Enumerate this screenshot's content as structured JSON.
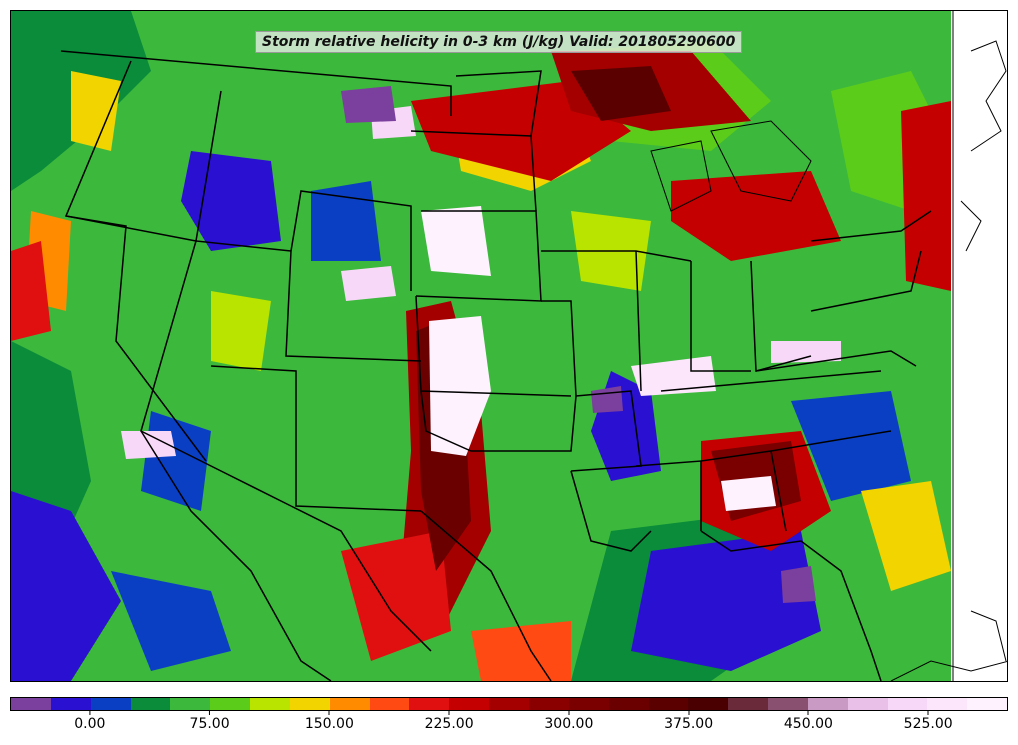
{
  "title": "Storm relative helicity in 0-3 km (J/kg) Valid: 201805290600",
  "colorbar": {
    "colors": [
      "#7b3f9e",
      "#2a10d0",
      "#0a3fc4",
      "#0a8c3a",
      "#3cb83c",
      "#5ccc1a",
      "#b8e400",
      "#f2d400",
      "#ff8c00",
      "#ff4a14",
      "#e01010",
      "#c40000",
      "#a40000",
      "#8a0000",
      "#7a0000",
      "#6a0000",
      "#5a0000",
      "#4a0000",
      "#6b2a3a",
      "#8a5070",
      "#c89ac4",
      "#e8c0e8",
      "#f8d8f8",
      "#fbe6fb",
      "#fdf2fd"
    ],
    "ticks": [
      {
        "label": "0.00",
        "pos": 0.08
      },
      {
        "label": "75.00",
        "pos": 0.2
      },
      {
        "label": "150.00",
        "pos": 0.32
      },
      {
        "label": "225.00",
        "pos": 0.44
      },
      {
        "label": "300.00",
        "pos": 0.56
      },
      {
        "label": "375.00",
        "pos": 0.68
      },
      {
        "label": "450.00",
        "pos": 0.8
      },
      {
        "label": "525.00",
        "pos": 0.92
      }
    ]
  },
  "map": {
    "background_color": "#3cb83c",
    "ocean_color": "#ffffff",
    "border_color": "#000000"
  }
}
